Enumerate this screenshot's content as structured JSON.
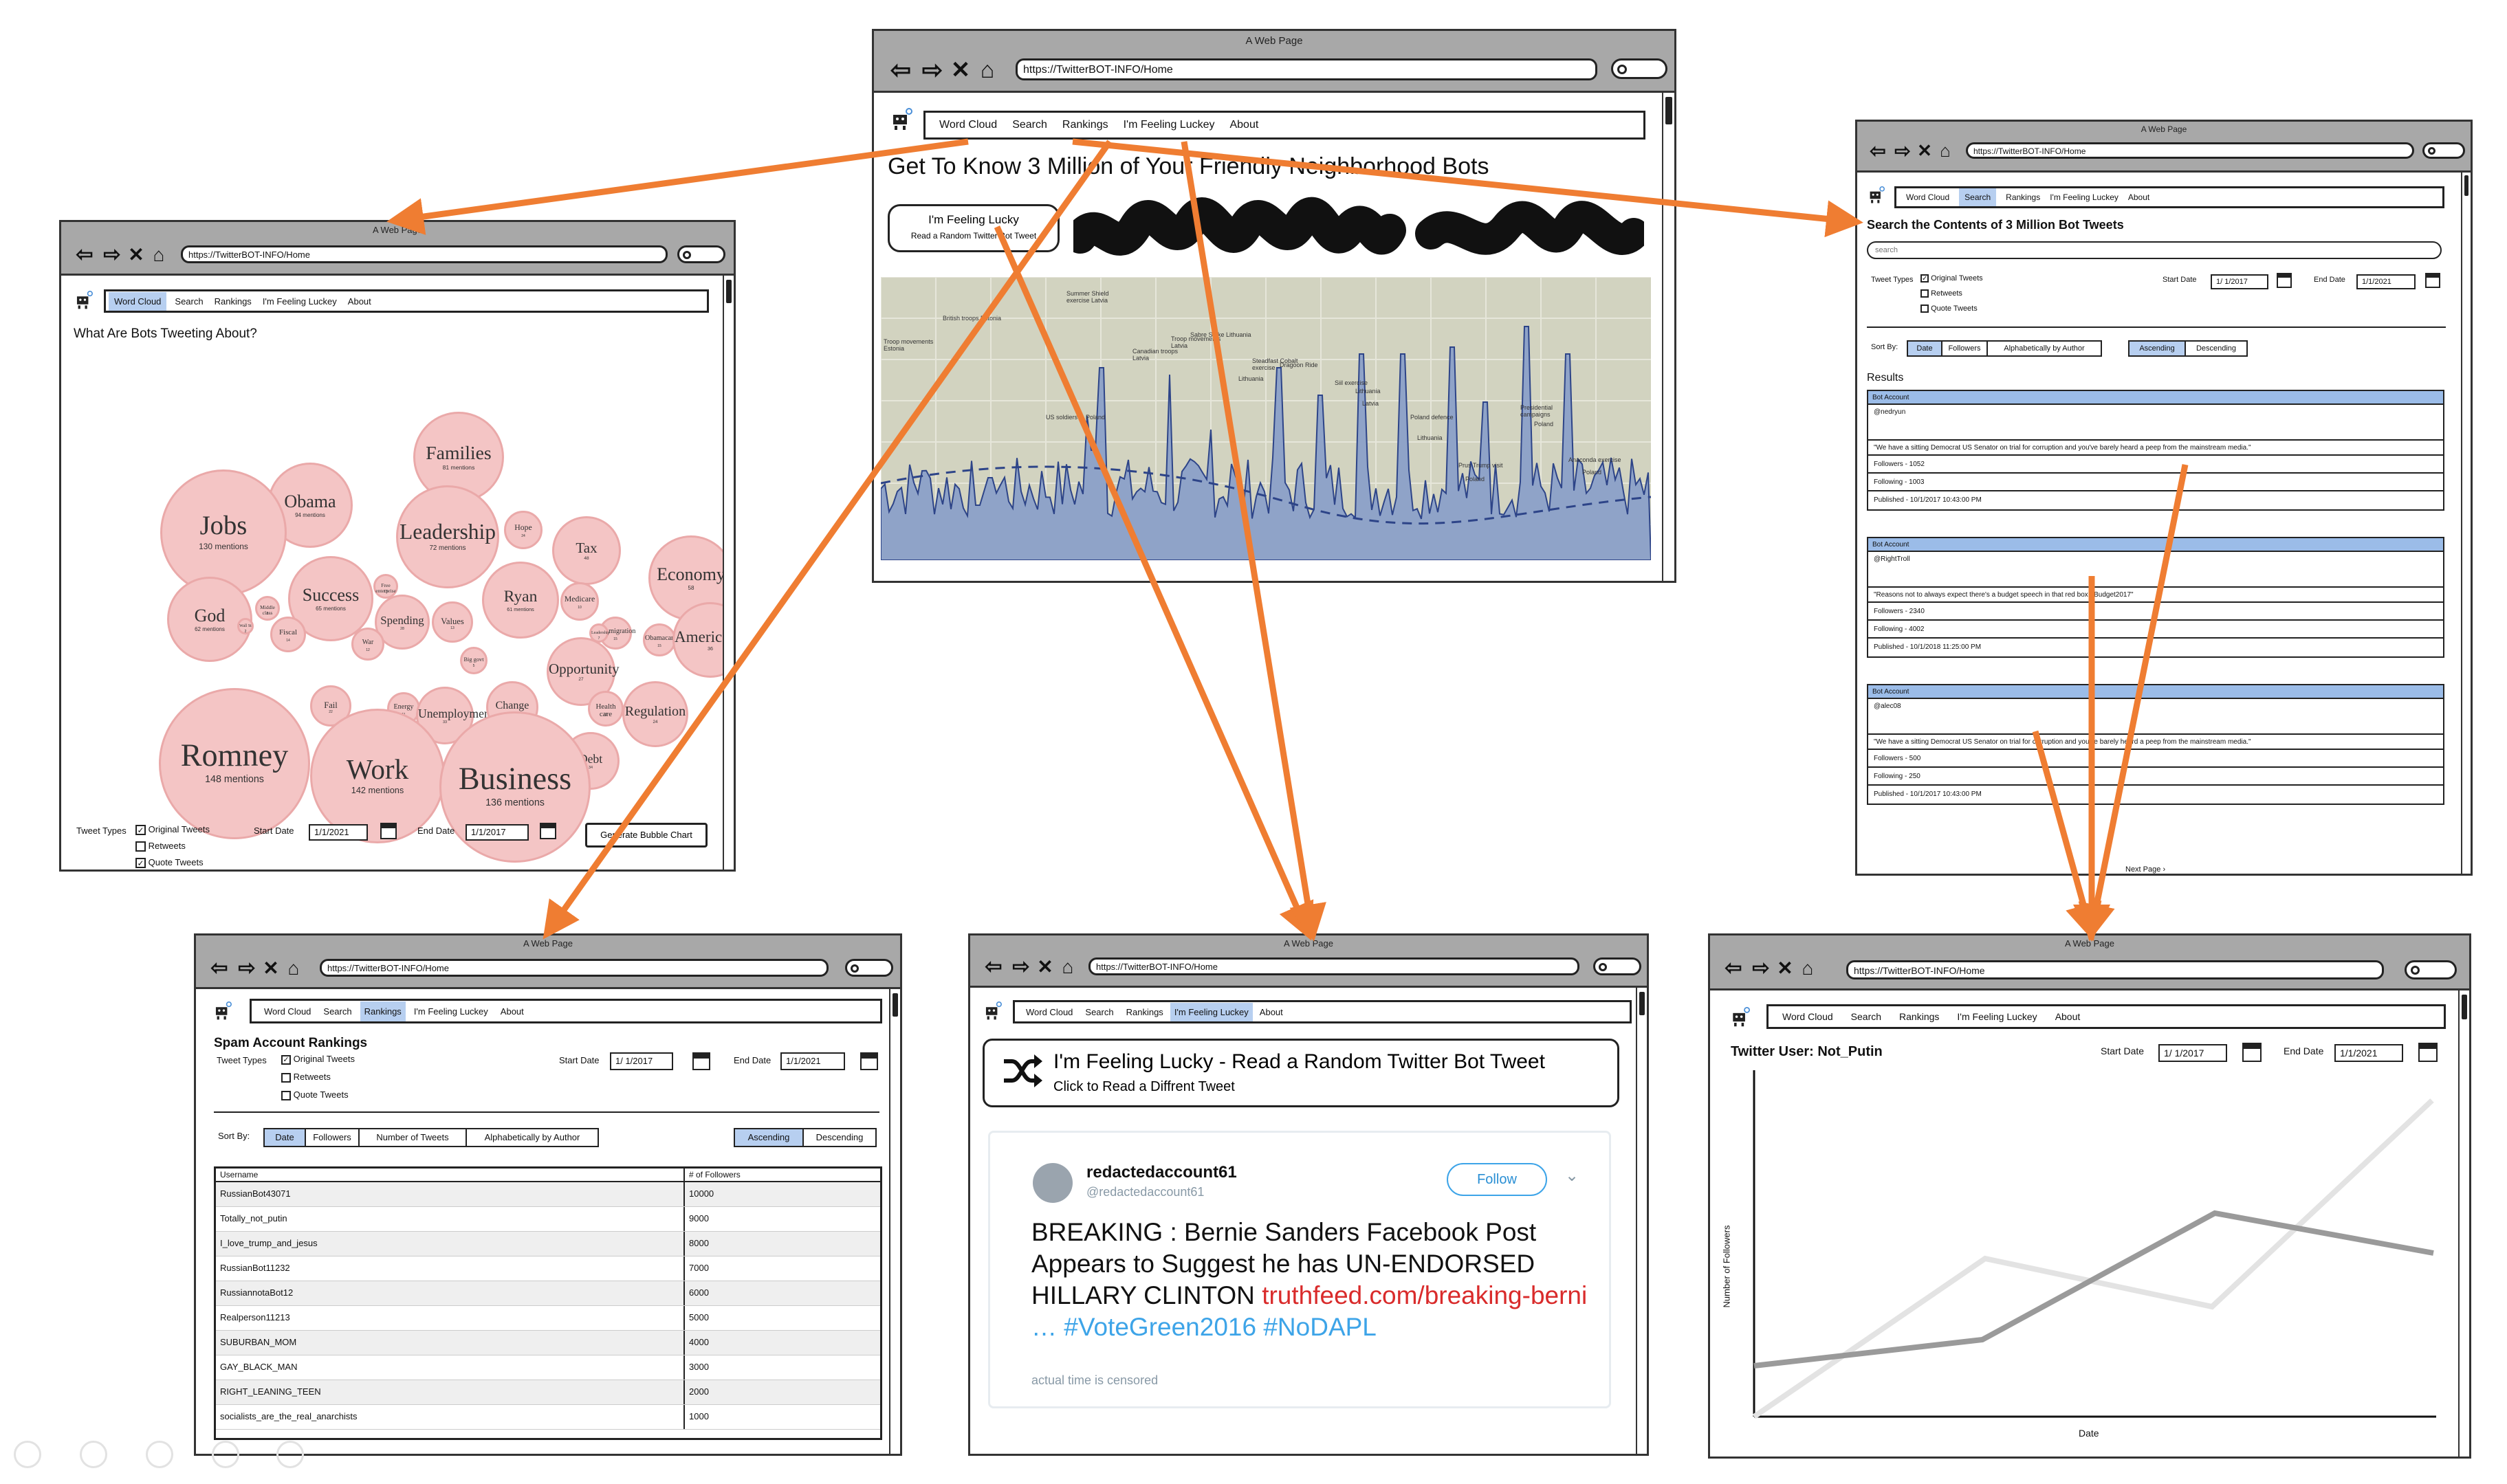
{
  "window_title": "A Web Page",
  "url": "https://TwitterBOT-INFO/Home",
  "menu": [
    "Word Cloud",
    "Search",
    "Rankings",
    "I'm Feeling Luckey",
    "About"
  ],
  "home": {
    "heading": "Get To Know 3 Million of Your Friendly Neighborhood Bots",
    "lucky_title": "I'm Feeling Lucky",
    "lucky_sub": "Read a Random Twitter Bot Tweet",
    "annotations": [
      "Troop movements Estonia",
      "British troops Estonia",
      "US soldiers in Poland",
      "Summer Shield exercise Latvia",
      "Canadian troops Latvia",
      "Troop movements Latvia",
      "Sabre Strike Lithuania",
      "Steadfast Cobalt exercise",
      "Dragoon Ride",
      "Lithuania",
      "Siil exercise",
      "Lithuania",
      "Latvia",
      "Poland defence",
      "Lithuania",
      "Prus Trump visit",
      "Poland",
      "Presidential campaigns",
      "Poland",
      "Anaconda exercise",
      "Poland"
    ]
  },
  "wordcloud": {
    "heading": "What Are Bots Tweeting About?",
    "tweet_types_label": "Tweet Types",
    "types": [
      "Original Tweets",
      "Retweets",
      "Quote Tweets"
    ],
    "start_label": "Start Date",
    "start_value": "1/1/2021",
    "end_label": "End Date",
    "end_value": "1/1/2017",
    "generate": "Generate Bubble Chart",
    "bubbles": [
      {
        "w": "Families",
        "c": "81 mentions"
      },
      {
        "w": "Obama",
        "c": "94 mentions"
      },
      {
        "w": "Jobs",
        "c": "130 mentions"
      },
      {
        "w": "Leadership",
        "c": "72 mentions"
      },
      {
        "w": "Hope",
        "c": "24"
      },
      {
        "w": "Tax",
        "c": "48"
      },
      {
        "w": "Economy",
        "c": "58"
      },
      {
        "w": "Success",
        "c": "65 mentions"
      },
      {
        "w": "Ryan",
        "c": "61 mentions"
      },
      {
        "w": "God",
        "c": "62 mentions"
      },
      {
        "w": "Spending",
        "c": "28"
      },
      {
        "w": "Values",
        "c": "13"
      },
      {
        "w": "Medicare",
        "c": "10"
      },
      {
        "w": "Immigration",
        "c": "15"
      },
      {
        "w": "Obamacare",
        "c": "15"
      },
      {
        "w": "American dream",
        "c": "36"
      },
      {
        "w": "Fiscal",
        "c": "14"
      },
      {
        "w": "War",
        "c": "12"
      },
      {
        "w": "Opportunity",
        "c": "27"
      },
      {
        "w": "Health care",
        "c": "11"
      },
      {
        "w": "Fail",
        "c": "22"
      },
      {
        "w": "Energy",
        "c": "11"
      },
      {
        "w": "Unemployment",
        "c": "33"
      },
      {
        "w": "Change",
        "c": "29"
      },
      {
        "w": "Regulation",
        "c": "24"
      },
      {
        "w": "Debt",
        "c": "34"
      },
      {
        "w": "Romney",
        "c": "148 mentions"
      },
      {
        "w": "Work",
        "c": "142 mentions"
      },
      {
        "w": "Business",
        "c": "136 mentions"
      },
      {
        "w": "Free enterprise",
        "c": "13"
      },
      {
        "w": "Middle class",
        "c": "5"
      },
      {
        "w": "Wall St",
        "c": "2"
      },
      {
        "w": "Leadership",
        "c": "7"
      },
      {
        "w": "Big govt",
        "c": "5"
      }
    ]
  },
  "search": {
    "heading": "Search the Contents of 3 Million Bot Tweets",
    "placeholder": "search",
    "tweet_types_label": "Tweet Types",
    "types": [
      "Original Tweets",
      "Retweets",
      "Quote Tweets"
    ],
    "start_label": "Start Date",
    "start_value": "1/ 1/2017",
    "end_label": "End Date",
    "end_value": "1/1/2021",
    "sort_by": "Sort By:",
    "sort_opts": [
      "Date",
      "Followers",
      "Alphabetically by Author"
    ],
    "order_opts": [
      "Ascending",
      "Descending"
    ],
    "results_label": "Results",
    "results": [
      {
        "hd": "Bot Account",
        "user": "@nedryun",
        "text": "\"We have a sitting Democrat US Senator on trial for corruption and you've barely heard a peep from the mainstream media.\"",
        "followers": "Followers - 1052",
        "following": "Following - 1003",
        "published": "Published - 10/1/2017  10:43:00 PM"
      },
      {
        "hd": "Bot Account",
        "user": "@RightTroll",
        "text": "\"Reasons not to always expect there's a budget speech in that red box  #Budget2017\"",
        "followers": "Followers - 2340",
        "following": "Following - 4002",
        "published": "Published - 10/1/2018  11:25:00 PM"
      },
      {
        "hd": "Bot Account",
        "user": "@alec08",
        "text": "\"We have a sitting Democrat US Senator on trial for corruption and you've barely heard a peep from the mainstream media.\"",
        "followers": "Followers - 500",
        "following": "Following - 250",
        "published": "Published - 10/1/2017  10:43:00 PM"
      }
    ],
    "next": "Next Page"
  },
  "rankings": {
    "heading": "Spam Account Rankings",
    "tweet_types_label": "Tweet Types",
    "types": [
      "Original Tweets",
      "Retweets",
      "Quote Tweets"
    ],
    "start_label": "Start Date",
    "start_value": "1/ 1/2017",
    "end_label": "End Date",
    "end_value": "1/1/2021",
    "sort_by": "Sort By:",
    "sort_opts": [
      "Date",
      "Followers",
      "Number of Tweets",
      "Alphabetically by Author"
    ],
    "order_opts": [
      "Ascending",
      "Descending"
    ],
    "col_user": "Username",
    "col_followers": "# of Followers",
    "rows": [
      {
        "u": "RussianBot43071",
        "f": "10000"
      },
      {
        "u": "Totally_not_putin",
        "f": "9000"
      },
      {
        "u": "I_love_trump_and_jesus",
        "f": "8000"
      },
      {
        "u": "RussianBot11232",
        "f": "7000"
      },
      {
        "u": "RussiannotaBot12",
        "f": "6000"
      },
      {
        "u": "Realperson11213",
        "f": "5000"
      },
      {
        "u": "SUBURBAN_MOM",
        "f": "4000"
      },
      {
        "u": "GAY_BLACK_MAN",
        "f": "3000"
      },
      {
        "u": "RIGHT_LEANING_TEEN",
        "f": "2000"
      },
      {
        "u": "socialists_are_the_real_anarchists",
        "f": "1000"
      }
    ]
  },
  "lucky": {
    "banner_title": "I'm Feeling Lucky - Read a Random Twitter Bot Tweet",
    "banner_sub": "Click to Read a Diffrent Tweet",
    "name": "redactedaccount61",
    "handle": "@redactedaccount61",
    "follow": "Follow",
    "tweet_plain": "BREAKING : Bernie Sanders Facebook Post Appears to Suggest he has UN-ENDORSED HILLARY CLINTON",
    "tweet_link": "truthfeed.com/breaking-berni",
    "tweet_tags": "… #VoteGreen2016 #NoDAPL",
    "footer": "actual time is censored"
  },
  "user": {
    "heading": "Twitter User: Not_Putin",
    "start_label": "Start Date",
    "start_value": "1/ 1/2017",
    "end_label": "End Date",
    "end_value": "1/1/2021",
    "ylabel": "Number of Followers",
    "xlabel": "Date"
  },
  "colors": {
    "arrow": "#ef7d32",
    "highlight": "#b7cff0",
    "bubble": "#f4c5c5",
    "chart_fill": "#8fa3c8",
    "chart_bg": "#d2d3c0"
  }
}
